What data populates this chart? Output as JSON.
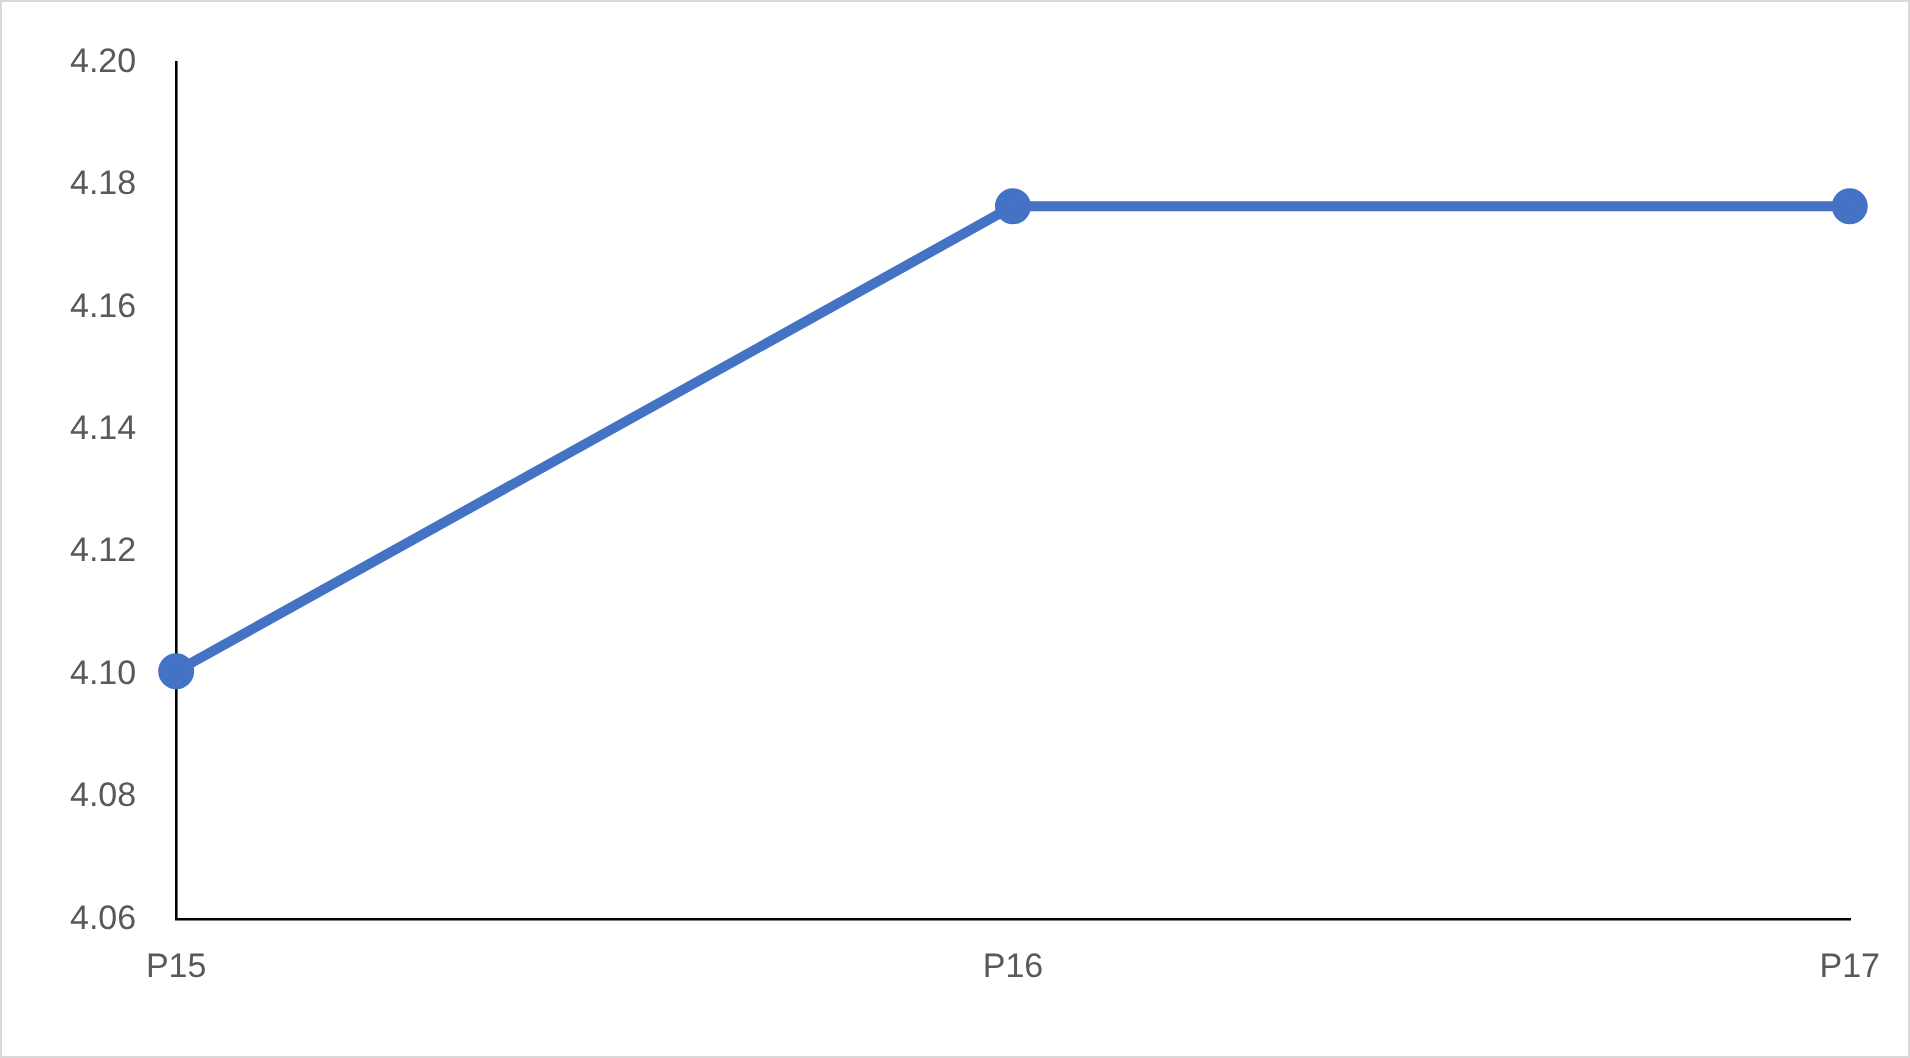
{
  "chart_data": {
    "type": "line",
    "categories": [
      "P15",
      "P16",
      "P17"
    ],
    "series": [
      {
        "color": "#4472c4",
        "values": [
          4.1005,
          4.1765,
          4.1765
        ]
      }
    ],
    "ylim": [
      4.06,
      4.2
    ],
    "yticks": [
      {
        "value": 4.06,
        "label": "4.06"
      },
      {
        "value": 4.08,
        "label": "4.08"
      },
      {
        "value": 4.1,
        "label": "4.10"
      },
      {
        "value": 4.12,
        "label": "4.12"
      },
      {
        "value": 4.14,
        "label": "4.14"
      },
      {
        "value": 4.16,
        "label": "4.16"
      },
      {
        "value": 4.18,
        "label": "4.18"
      },
      {
        "value": 4.2,
        "label": "4.20"
      }
    ],
    "grid": false,
    "legend": false,
    "marker": "circle",
    "line_style": "solid"
  }
}
